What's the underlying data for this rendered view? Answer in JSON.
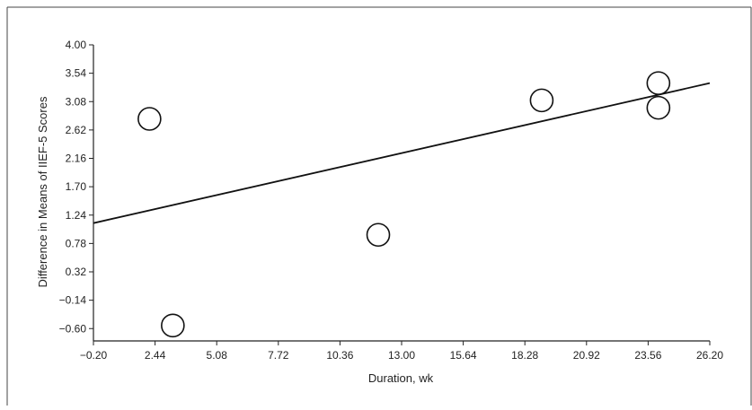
{
  "chart_data": {
    "type": "scatter",
    "title": "",
    "xlabel": "Duration, wk",
    "ylabel": "Difference in Means of IIEF-5 Scores",
    "xlim": [
      -0.2,
      26.2
    ],
    "ylim": [
      -0.8,
      4.0
    ],
    "x_ticks": [
      -0.2,
      2.44,
      5.08,
      7.72,
      10.36,
      13.0,
      15.64,
      18.28,
      20.92,
      23.56,
      26.2
    ],
    "x_tick_labels": [
      "−0.20",
      "2.44",
      "5.08",
      "7.72",
      "10.36",
      "13.00",
      "15.64",
      "18.28",
      "20.92",
      "23.56",
      "26.20"
    ],
    "y_ticks": [
      4.0,
      3.54,
      3.08,
      2.62,
      2.16,
      1.7,
      1.24,
      0.78,
      0.32,
      -0.14,
      -0.6
    ],
    "y_tick_labels": [
      "4.00",
      "3.54",
      "3.08",
      "2.62",
      "2.16",
      "1.70",
      "1.24",
      "0.78",
      "0.32",
      "−0.14",
      "−0.60"
    ],
    "points": [
      {
        "x": 2.2,
        "y": 2.8
      },
      {
        "x": 3.2,
        "y": -0.55
      },
      {
        "x": 12.0,
        "y": 0.92
      },
      {
        "x": 19.0,
        "y": 3.1
      },
      {
        "x": 24.0,
        "y": 3.38
      },
      {
        "x": 24.0,
        "y": 2.98
      }
    ],
    "trend_line": {
      "x": [
        -0.2,
        26.2
      ],
      "y": [
        1.11,
        3.38
      ]
    },
    "grid": false,
    "legend": "none"
  }
}
